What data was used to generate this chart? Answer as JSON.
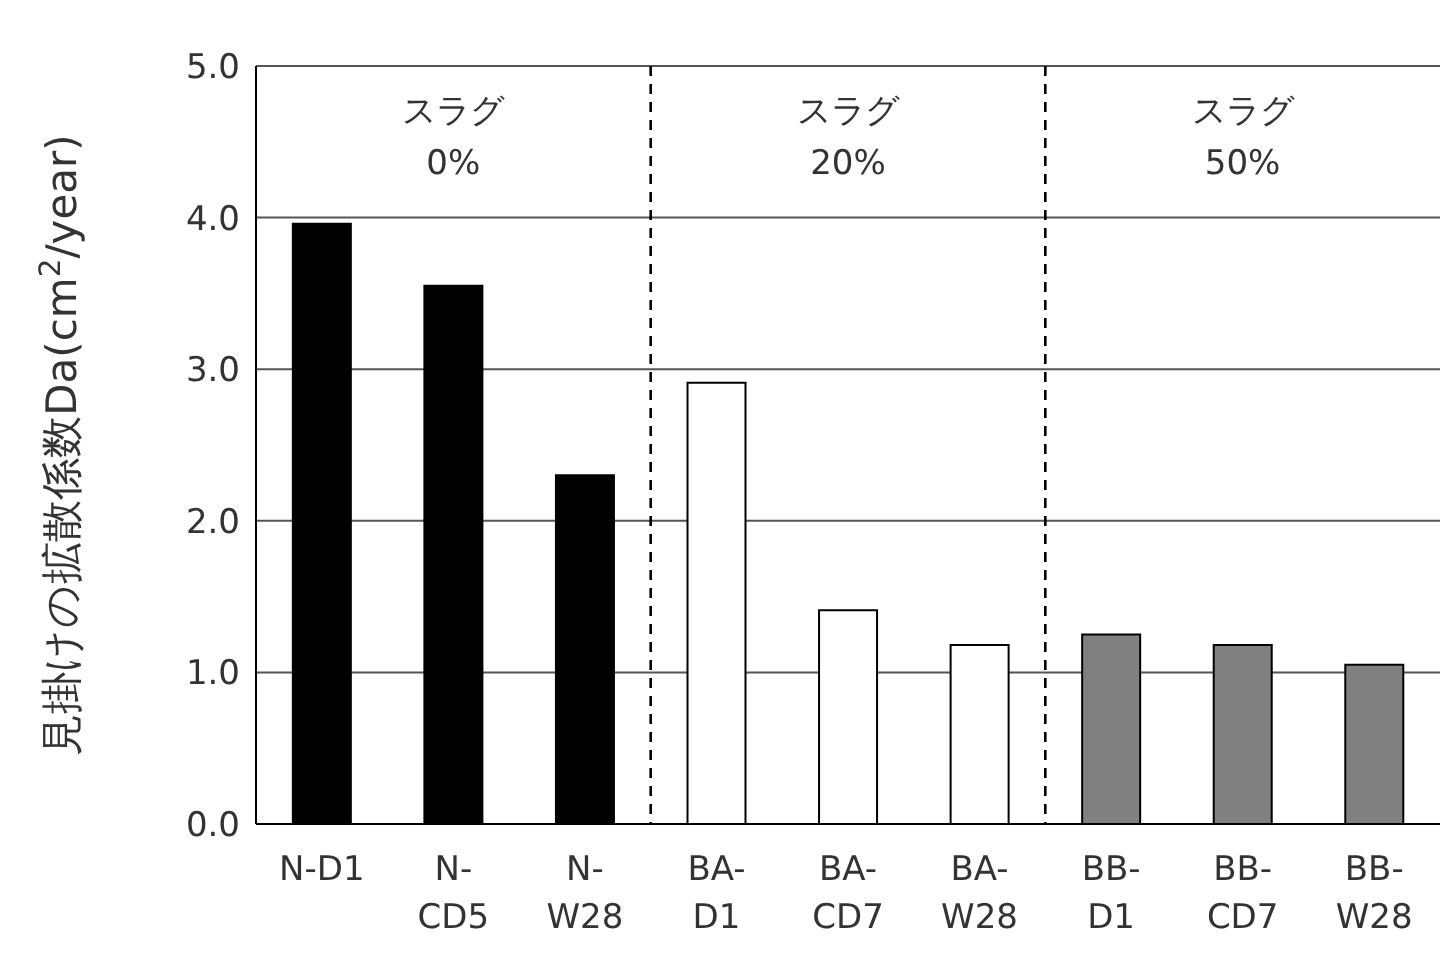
{
  "chart_data": {
    "type": "bar",
    "ylabel": "見掛けの拡散係数Da(cm$^{2}$/year)",
    "categories": [
      "N-D1",
      "N-\nCD5",
      "N-\nW28",
      "BA-\nD1",
      "BA-\nCD7",
      "BA-\nW28",
      "BB-\nD1",
      "BB-\nCD7",
      "BB-\nW28"
    ],
    "values": [
      3.96,
      3.55,
      2.3,
      2.91,
      1.41,
      1.18,
      1.25,
      1.18,
      1.05
    ],
    "colors": [
      "#000000",
      "#000000",
      "#000000",
      "#ffffff",
      "#ffffff",
      "#ffffff",
      "#808080",
      "#808080",
      "#808080"
    ],
    "ylim": [
      0,
      5
    ],
    "yticks": [
      {
        "value": 0,
        "label": "0.0"
      },
      {
        "value": 1,
        "label": "1.0"
      },
      {
        "value": 2,
        "label": "2.0"
      },
      {
        "value": 3,
        "label": "3.0"
      },
      {
        "value": 4,
        "label": "4.0"
      },
      {
        "value": 5,
        "label": "5.0"
      }
    ],
    "grid": "y",
    "annotations": [
      "スラグ\n0%",
      "スラグ\n20%",
      "スラグ\n50%"
    ]
  }
}
